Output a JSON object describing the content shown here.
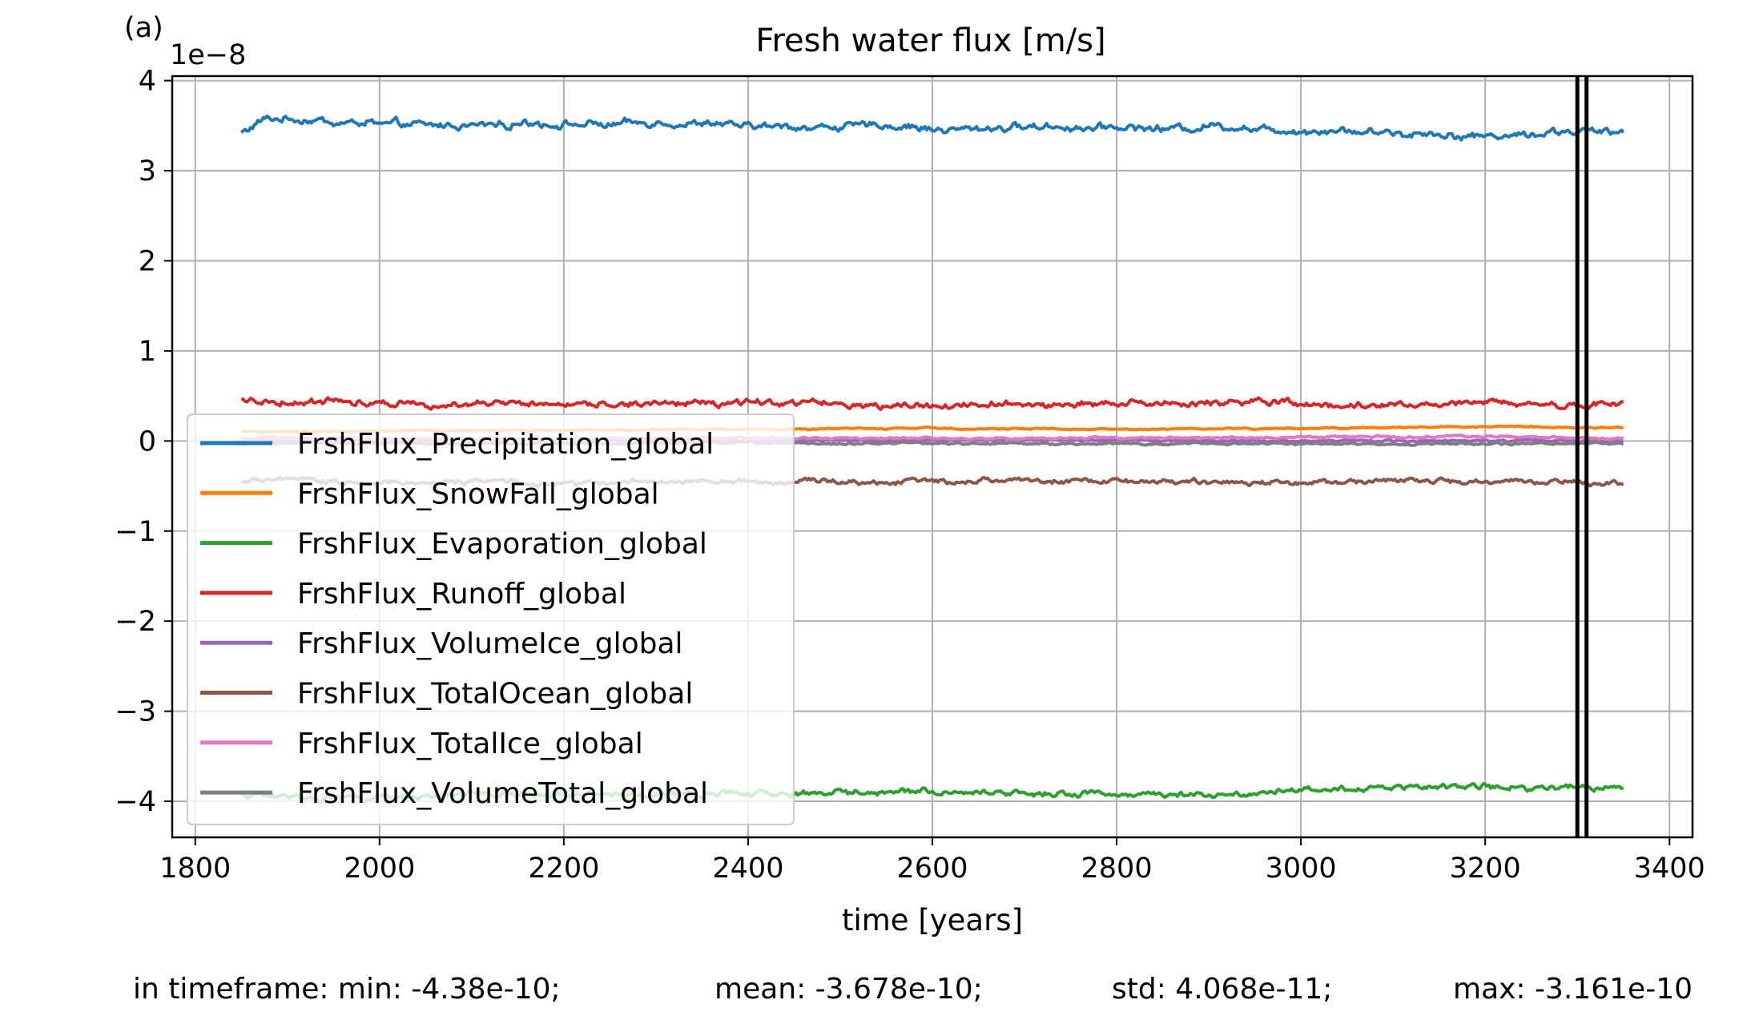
{
  "panel_label": "(a)",
  "stats": {
    "min": "in timeframe: min: -4.38e-10;",
    "mean": "mean: -3.678e-10;",
    "std": "std: 4.068e-11;",
    "max": "max: -3.161e-10"
  },
  "chart_data": {
    "type": "line",
    "title": "Fresh water flux [m/s]",
    "xlabel": "time [years]",
    "ylabel": "",
    "y_offset_label": "1e−8",
    "xlim": [
      1775,
      3425
    ],
    "ylim": [
      -4.4,
      4.05
    ],
    "xticks": [
      1800,
      2000,
      2200,
      2400,
      2600,
      2800,
      3000,
      3200,
      3400
    ],
    "yticks": [
      -4,
      -3,
      -2,
      -1,
      0,
      1,
      2,
      3,
      4
    ],
    "ytick_labels": [
      "−4",
      "−3",
      "−2",
      "−1",
      "0",
      "1",
      "2",
      "3",
      "4"
    ],
    "grid": true,
    "legend_position": "center-left",
    "vertical_lines": [
      3300,
      3310
    ],
    "series": [
      {
        "name": "FrshFlux_Precipitation_global",
        "color": "#1f77b4",
        "x": [
          1850,
          1875,
          1900,
          1950,
          2000,
          2050,
          2100,
          2150,
          2200,
          2250,
          2300,
          2350,
          2400,
          2450,
          2500,
          2550,
          2600,
          2650,
          2700,
          2750,
          2800,
          2850,
          2900,
          2950,
          3000,
          3050,
          3100,
          3150,
          3200,
          3250,
          3300,
          3350
        ],
        "y": [
          3.42,
          3.58,
          3.57,
          3.54,
          3.52,
          3.5,
          3.51,
          3.53,
          3.52,
          3.5,
          3.53,
          3.51,
          3.5,
          3.48,
          3.49,
          3.5,
          3.46,
          3.47,
          3.49,
          3.48,
          3.5,
          3.46,
          3.5,
          3.48,
          3.44,
          3.45,
          3.41,
          3.42,
          3.38,
          3.41,
          3.43,
          3.42
        ],
        "noise": 0.045
      },
      {
        "name": "FrshFlux_SnowFall_global",
        "color": "#ff7f0e",
        "x": [
          1850,
          2000,
          2200,
          2400,
          2600,
          2800,
          3000,
          3200,
          3350
        ],
        "y": [
          0.1,
          0.11,
          0.12,
          0.13,
          0.14,
          0.13,
          0.14,
          0.16,
          0.15
        ],
        "noise": 0.008
      },
      {
        "name": "FrshFlux_Evaporation_global",
        "color": "#2ca02c",
        "x": [
          1850,
          1900,
          2000,
          2100,
          2200,
          2300,
          2400,
          2500,
          2600,
          2700,
          2800,
          2900,
          3000,
          3100,
          3200,
          3300,
          3350
        ],
        "y": [
          -3.93,
          -3.96,
          -3.95,
          -3.93,
          -3.93,
          -3.92,
          -3.92,
          -3.9,
          -3.88,
          -3.91,
          -3.92,
          -3.92,
          -3.87,
          -3.84,
          -3.83,
          -3.85,
          -3.86
        ],
        "noise": 0.035
      },
      {
        "name": "FrshFlux_Runoff_global",
        "color": "#d62728",
        "x": [
          1850,
          1900,
          2000,
          2100,
          2200,
          2300,
          2400,
          2500,
          2600,
          2700,
          2800,
          2900,
          3000,
          3100,
          3200,
          3300,
          3350
        ],
        "y": [
          0.46,
          0.43,
          0.44,
          0.42,
          0.4,
          0.42,
          0.43,
          0.41,
          0.4,
          0.41,
          0.41,
          0.42,
          0.41,
          0.4,
          0.41,
          0.4,
          0.43
        ],
        "noise": 0.04
      },
      {
        "name": "FrshFlux_VolumeIce_global",
        "color": "#9467bd",
        "x": [
          1850,
          2100,
          2400,
          2700,
          3000,
          3350
        ],
        "y": [
          0.0,
          0.01,
          0.0,
          0.01,
          0.0,
          0.0
        ],
        "noise": 0.012
      },
      {
        "name": "FrshFlux_TotalOcean_global",
        "color": "#8c564b",
        "x": [
          1850,
          1900,
          2000,
          2100,
          2200,
          2300,
          2400,
          2500,
          2600,
          2700,
          2800,
          2900,
          3000,
          3100,
          3200,
          3300,
          3350
        ],
        "y": [
          -0.45,
          -0.44,
          -0.46,
          -0.45,
          -0.47,
          -0.45,
          -0.46,
          -0.45,
          -0.44,
          -0.44,
          -0.45,
          -0.46,
          -0.46,
          -0.44,
          -0.47,
          -0.45,
          -0.47
        ],
        "noise": 0.03
      },
      {
        "name": "FrshFlux_TotalIce_global",
        "color": "#e377c2",
        "x": [
          1850,
          2100,
          2400,
          2700,
          3000,
          3200,
          3350
        ],
        "y": [
          0.03,
          0.02,
          0.03,
          0.03,
          0.04,
          0.05,
          0.03
        ],
        "noise": 0.012
      },
      {
        "name": "FrshFlux_VolumeTotal_global",
        "color": "#7f7f7f",
        "x": [
          1850,
          2100,
          2400,
          2700,
          3000,
          3350
        ],
        "y": [
          -0.02,
          -0.03,
          -0.02,
          -0.03,
          -0.03,
          -0.03
        ],
        "noise": 0.012
      }
    ]
  }
}
